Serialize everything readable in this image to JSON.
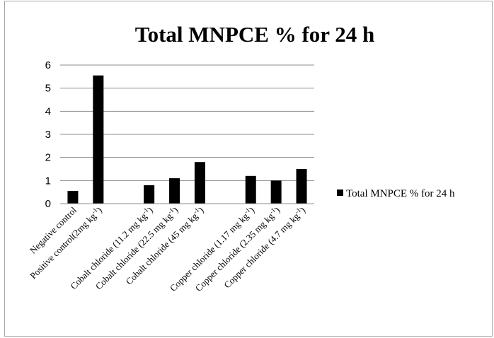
{
  "chart_data": {
    "type": "bar",
    "title": "Total MNPCE % for 24 h",
    "xlabel": "",
    "ylabel": "",
    "ylim": [
      0,
      6
    ],
    "yticks": [
      0,
      1,
      2,
      3,
      4,
      5,
      6
    ],
    "grid": true,
    "legend_position": "right",
    "categories": [
      {
        "text": "Negative control",
        "sup": ""
      },
      {
        "text": "Positive control(2mg kg",
        "sup": "-1",
        "tail": ")"
      },
      {
        "text": "",
        "sup": ""
      },
      {
        "text": "Cobalt chloride  (11.2 mg kg",
        "sup": "-1",
        "tail": ")"
      },
      {
        "text": "Cobalt chloride  (22.5 mg kg",
        "sup": "-1",
        "tail": ")"
      },
      {
        "text": "Cobalt chloride  (45 mg kg",
        "sup": "-1",
        "tail": ")"
      },
      {
        "text": "",
        "sup": ""
      },
      {
        "text": "Copper chloride  (1.17 mg kg",
        "sup": "-1",
        "tail": ")"
      },
      {
        "text": "Copper chloride  (2.35 mg kg",
        "sup": "-1",
        "tail": ")"
      },
      {
        "text": "Copper chloride  (4.7 mg kg",
        "sup": "-1",
        "tail": ")"
      }
    ],
    "series": [
      {
        "name": "Total MNPCE % for 24 h",
        "color": "#000000",
        "values": [
          0.55,
          5.55,
          null,
          0.8,
          1.1,
          1.8,
          null,
          1.2,
          1.0,
          1.5
        ]
      }
    ]
  }
}
